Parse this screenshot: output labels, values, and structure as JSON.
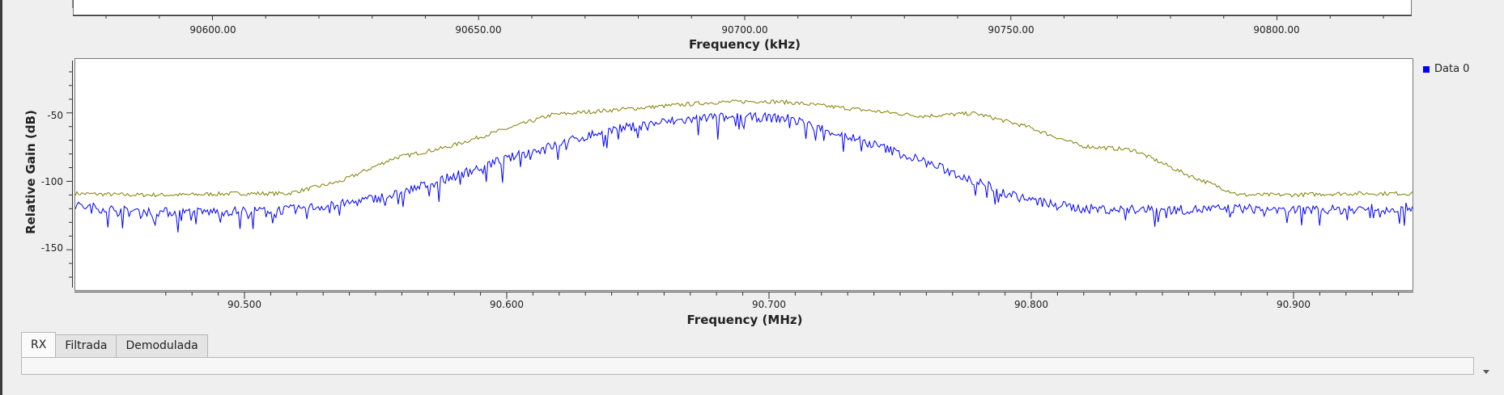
{
  "fft_panel": {
    "x_title": "Frequency (kHz)",
    "x_ticks": [
      "90600.00",
      "90650.00",
      "90700.00",
      "90750.00",
      "90800.00"
    ]
  },
  "spectrum_plot": {
    "x_title": "Frequency (MHz)",
    "y_title": "Relative Gain (dB)",
    "x_ticks": [
      "90.500",
      "90.600",
      "90.700",
      "90.800",
      "90.900"
    ],
    "y_ticks": [
      "-50",
      "-100",
      "-150"
    ],
    "legend": "Data 0",
    "colors": {
      "data0": "#0000ff",
      "max_hold": "#808000"
    }
  },
  "chart_data": {
    "type": "line",
    "xlabel": "Frequency (MHz)",
    "ylabel": "Relative Gain (dB)",
    "xlim": [
      90.4395,
      90.9455
    ],
    "ylim": [
      -180,
      -10
    ],
    "grid": false,
    "legend_position": "top-right",
    "x": [
      90.4395,
      90.46,
      90.48,
      90.5,
      90.52,
      90.54,
      90.56,
      90.58,
      90.6,
      90.62,
      90.64,
      90.66,
      90.68,
      90.7,
      90.71,
      90.72,
      90.74,
      90.76,
      90.78,
      90.8,
      90.82,
      90.84,
      90.86,
      90.88,
      90.9,
      90.92,
      90.9455
    ],
    "series": [
      {
        "name": "Data 0",
        "values": [
          -118,
          -122,
          -123,
          -122,
          -121,
          -117,
          -110,
          -98,
          -85,
          -74,
          -63,
          -57,
          -53,
          -53,
          -54,
          -60,
          -72,
          -85,
          -100,
          -114,
          -120,
          -121,
          -121,
          -120,
          -121,
          -121,
          -119
        ]
      },
      {
        "values": [
          -109,
          -110,
          -110,
          -109,
          -109,
          -100,
          -83,
          -75,
          -63,
          -51,
          -48,
          -45,
          -42,
          -41,
          -42,
          -44,
          -48,
          -52,
          -50,
          -60,
          -74,
          -77,
          -95,
          -110,
          -110,
          -109,
          -109
        ]
      }
    ]
  },
  "tabs": [
    {
      "label": "RX",
      "active": true
    },
    {
      "label": "Filtrada",
      "active": false
    },
    {
      "label": "Demodulada",
      "active": false
    }
  ]
}
